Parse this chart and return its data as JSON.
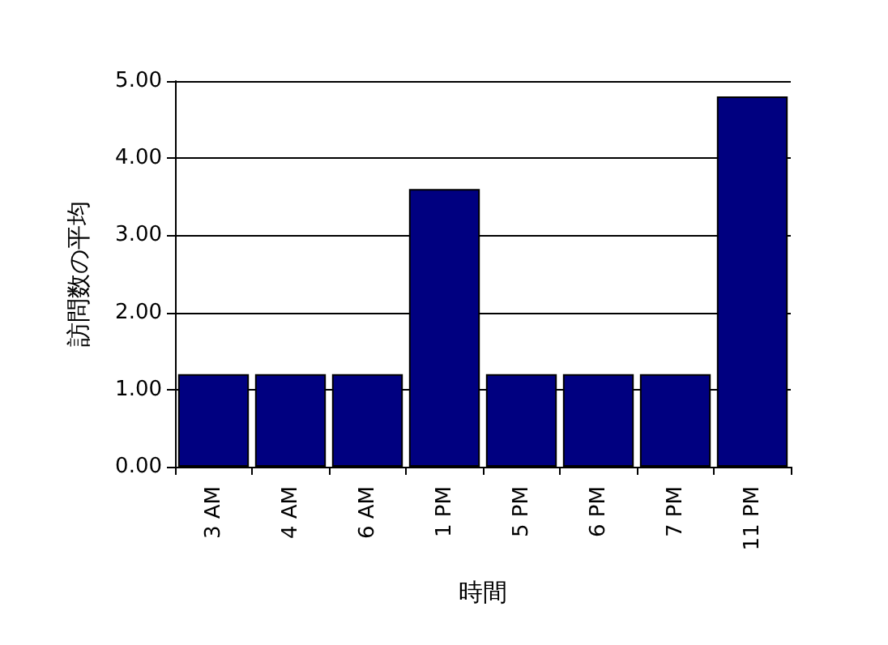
{
  "chart_data": {
    "type": "bar",
    "xlabel": "時間",
    "ylabel": "訪問数の平均",
    "categories": [
      "3 AM",
      "4 AM",
      "6 AM",
      "1 PM",
      "5 PM",
      "6 PM",
      "7 PM",
      "11 PM"
    ],
    "values": [
      1.2,
      1.2,
      1.2,
      3.6,
      1.2,
      1.2,
      1.2,
      4.8
    ],
    "color": "#000080",
    "ylim": [
      0,
      5
    ],
    "yticks": [
      {
        "value": 0,
        "label": "0.00"
      },
      {
        "value": 1,
        "label": "1.00"
      },
      {
        "value": 2,
        "label": "2.00"
      },
      {
        "value": 3,
        "label": "3.00"
      },
      {
        "value": 4,
        "label": "4.00"
      },
      {
        "value": 5,
        "label": "5.00"
      }
    ],
    "grid": "y"
  }
}
